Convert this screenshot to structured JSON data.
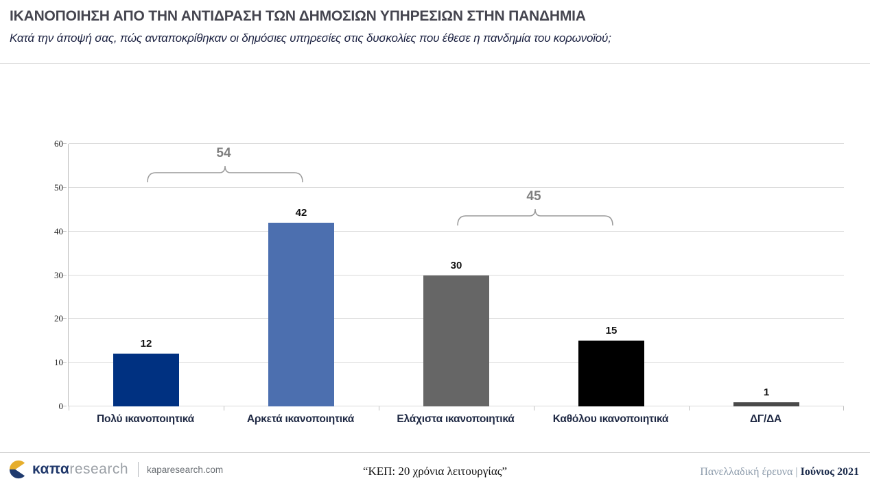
{
  "header": {
    "title": "ΙΚΑΝΟΠΟΙΗΣΗ ΑΠΟ ΤΗΝ ΑΝΤΙΔΡΑΣΗ ΤΩΝ ΔΗΜΟΣΙΩΝ ΥΠΗΡΕΣΙΩΝ ΣΤΗΝ ΠΑΝΔΗΜΙΑ",
    "subtitle": "Κατά την άποψή σας, πώς ανταποκρίθηκαν οι δημόσιες υπηρεσίες στις δυσκολίες που έθεσε η πανδημία του κορωνοϊού;"
  },
  "chart_data": {
    "type": "bar",
    "categories": [
      "Πολύ ικανοποιητικά",
      "Αρκετά ικανοποιητικά",
      "Ελάχιστα ικανοποιητικά",
      "Καθόλου ικανοποιητικά",
      "ΔΓ/ΔΑ"
    ],
    "values": [
      12,
      42,
      30,
      15,
      1
    ],
    "bar_colors": [
      "#003181",
      "#4c6faf",
      "#666666",
      "#000000",
      "#4a4a4a"
    ],
    "title": "",
    "xlabel": "",
    "ylabel": "",
    "ylim": [
      0,
      60
    ],
    "yticks": [
      0,
      10,
      20,
      30,
      40,
      50,
      60
    ],
    "grid": "horizontal",
    "legend": "none",
    "annotations": [
      {
        "type": "bracket",
        "label": "54",
        "from_category": 0,
        "to_category": 1,
        "y_value": 53.5
      },
      {
        "type": "bracket",
        "label": "45",
        "from_category": 2,
        "to_category": 3,
        "y_value": 43.5
      }
    ],
    "style": {
      "gridline_color": "#d9d9d9",
      "axis_color": "#bfbfbf",
      "bracket_color": "#999999",
      "bracket_label_color": "#7f7f7f"
    }
  },
  "footer": {
    "brand_kapa": "καπα",
    "brand_research": "research",
    "website": "kaparesearch.com",
    "center_text": "“ΚΕΠ: 20 χρόνια λειτουργίας”",
    "right_muted": "Πανελλαδική έρευνα",
    "right_separator": "|",
    "right_bold": "Ιούνιος 2021",
    "logo_colors": {
      "top": "#e6ae2c",
      "bottom": "#1f3a6e"
    }
  }
}
